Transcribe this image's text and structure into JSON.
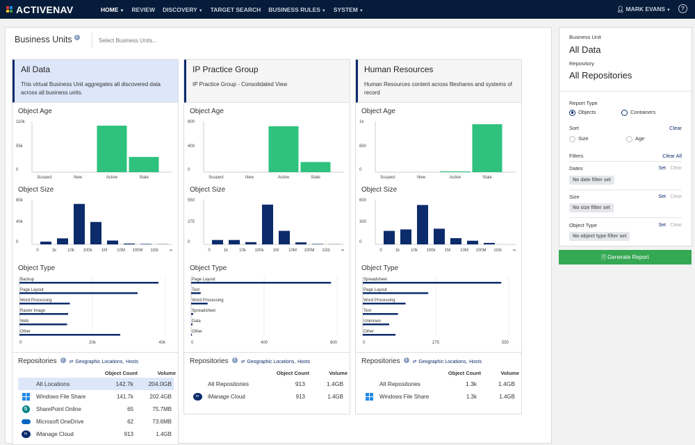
{
  "brand": {
    "name": "ACTIVENAV",
    "colors": [
      "#e53935",
      "#1e88e5",
      "#fbc02d",
      "#43a047"
    ]
  },
  "nav": [
    {
      "label": "HOME",
      "active": true,
      "dropdown": true
    },
    {
      "label": "REVIEW",
      "dropdown": false
    },
    {
      "label": "DISCOVERY",
      "dropdown": true
    },
    {
      "label": "TARGET SEARCH",
      "dropdown": false
    },
    {
      "label": "BUSINESS RULES",
      "dropdown": true
    },
    {
      "label": "SYSTEM",
      "dropdown": true
    }
  ],
  "user": {
    "name": "MARK EVANS",
    "help": "?"
  },
  "business_units": {
    "title": "Business Units",
    "placeholder": "Select Business Units..."
  },
  "section_titles": {
    "age": "Object Age",
    "size": "Object Size",
    "type": "Object Type",
    "repos": "Repositories"
  },
  "repo_links": {
    "geo": "Geographic Locations,",
    "hosts": "Hosts"
  },
  "repo_cols": {
    "count": "Object Count",
    "volume": "Volume"
  },
  "cards": [
    {
      "title": "All Data",
      "desc": "This virtual Business Unit aggregates all discovered data across all business units.",
      "selected": true,
      "age": {
        "yticks": [
          "110k",
          "55k",
          "0"
        ],
        "ymax": 110000,
        "cats": [
          "Suspect",
          "New",
          "Active",
          "Stale"
        ],
        "values": [
          0,
          0,
          101000,
          33000
        ]
      },
      "size": {
        "yticks": [
          "80k",
          "40k",
          "0"
        ],
        "ymax": 80000,
        "xticks": [
          "0",
          "1k",
          "10k",
          "100k",
          "1M",
          "10M",
          "100M",
          "1Gb",
          "∞"
        ],
        "values": [
          5000,
          11000,
          74000,
          41000,
          7000,
          1500,
          800,
          300
        ]
      },
      "type": {
        "xticks": [
          "0",
          "20k",
          "40k"
        ],
        "xmax": 42000,
        "cats": [
          "Backup",
          "Page Layout",
          "Word Processing",
          "Raster Image",
          "Web",
          "Other"
        ],
        "values": [
          40000,
          34000,
          14500,
          14000,
          13700,
          29000
        ]
      },
      "repos": [
        {
          "name": "All Locations",
          "count": "142.7k",
          "volume": "204.0GB",
          "icon": "none",
          "total": true
        },
        {
          "name": "Windows File Share",
          "count": "141.7k",
          "volume": "202.4GB",
          "icon": "windows-icon"
        },
        {
          "name": "SharePoint Online",
          "count": "65",
          "volume": "75.7MB",
          "icon": "sharepoint-icon"
        },
        {
          "name": "Microsoft OneDrive",
          "count": "62",
          "volume": "73.6MB",
          "icon": "onedrive-icon"
        },
        {
          "name": "iManage Cloud",
          "count": "913",
          "volume": "1.4GB",
          "icon": "imanage-icon"
        }
      ]
    },
    {
      "title": "IP Practice Group",
      "desc": "IP Practice Group - Consolidated View",
      "selected": false,
      "age": {
        "yticks": [
          "800",
          "400",
          "0"
        ],
        "ymax": 800,
        "cats": [
          "Suspect",
          "New",
          "Active",
          "Stale"
        ],
        "values": [
          0,
          0,
          725,
          160
        ]
      },
      "size": {
        "yticks": [
          "550",
          "275",
          "0"
        ],
        "ymax": 550,
        "xticks": [
          "0",
          "1k",
          "10k",
          "100k",
          "1M",
          "10M",
          "100M",
          "1Gb",
          "∞"
        ],
        "values": [
          55,
          55,
          28,
          500,
          170,
          25,
          5,
          2
        ]
      },
      "type": {
        "xticks": [
          "0",
          "400",
          "800"
        ],
        "xmax": 840,
        "cats": [
          "Page Layout",
          "Text",
          "Word Processing",
          "Spreadsheet",
          "Data",
          "Other"
        ],
        "values": [
          805,
          55,
          95,
          12,
          8,
          5
        ]
      },
      "repos": [
        {
          "name": "All Repositories",
          "count": "913",
          "volume": "1.4GB",
          "icon": "none",
          "total": true
        },
        {
          "name": "iManage Cloud",
          "count": "913",
          "volume": "1.4GB",
          "icon": "imanage-icon"
        }
      ]
    },
    {
      "title": "Human Resources",
      "desc": "Human Resources content across fileshares and systems of record",
      "selected": false,
      "age": {
        "yticks": [
          "1k",
          "650",
          "0"
        ],
        "ymax": 1300,
        "cats": [
          "Suspect",
          "New",
          "Active",
          "Stale"
        ],
        "values": [
          0,
          0,
          20,
          1230
        ]
      },
      "size": {
        "yticks": [
          "600",
          "300",
          "0"
        ],
        "ymax": 600,
        "xticks": [
          "0",
          "1k",
          "10k",
          "100k",
          "1M",
          "10M",
          "100M",
          "1Gb",
          "∞"
        ],
        "values": [
          185,
          205,
          540,
          215,
          85,
          50,
          20,
          0
        ]
      },
      "type": {
        "xticks": [
          "0",
          "275",
          "550"
        ],
        "xmax": 580,
        "cats": [
          "Spreadsheet",
          "Page Layout",
          "Word Processing",
          "Text",
          "Unknown",
          "Other"
        ],
        "values": [
          550,
          260,
          170,
          140,
          105,
          130
        ]
      },
      "repos": [
        {
          "name": "All Repositories",
          "count": "1.3k",
          "volume": "1.4GB",
          "icon": "none",
          "total": true
        },
        {
          "name": "Windows File Share",
          "count": "1.3k",
          "volume": "1.4GB",
          "icon": "windows-icon"
        }
      ]
    }
  ],
  "sidebar": {
    "bu_label": "Business Unit",
    "bu_value": "All Data",
    "repo_label": "Repository",
    "repo_value": "All Repositories",
    "report_type_label": "Report Type",
    "objects": "Objects",
    "containers": "Containers",
    "sort_label": "Sort",
    "clear": "Clear",
    "size": "Size",
    "age": "Age",
    "filters_label": "Filters",
    "clear_all": "Clear All",
    "set": "Set",
    "dates_label": "Dates",
    "dates_pill": "No date filter set",
    "size_label": "Size",
    "size_pill": "No size filter set",
    "type_label": "Object Type",
    "type_pill": "No object type filter set",
    "generate": "Generate Report"
  },
  "theme": {
    "navy": "#0b2b6b",
    "green": "#2ec27e",
    "accent": "#35a853"
  }
}
